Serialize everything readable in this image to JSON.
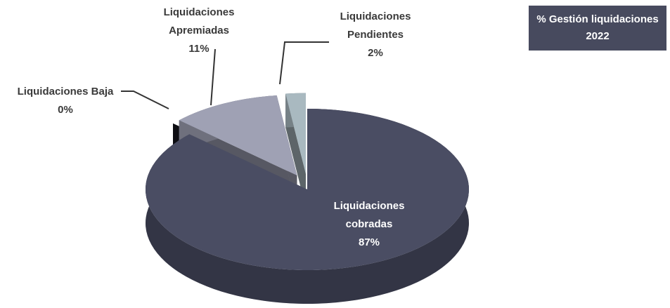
{
  "chart_data": {
    "type": "pie",
    "title": "% Gestión liquidaciones 2022",
    "categories": [
      "Liquidaciones cobradas",
      "Liquidaciones Baja",
      "Liquidaciones Apremiadas",
      "Liquidaciones Pendientes"
    ],
    "values": [
      87,
      0,
      11,
      2
    ],
    "value_labels": [
      "87%",
      "0%",
      "11%",
      "2%"
    ],
    "colors": [
      "#4a4d63",
      "#1b1b24",
      "#9fa1b4",
      "#a9b9c0"
    ]
  }
}
